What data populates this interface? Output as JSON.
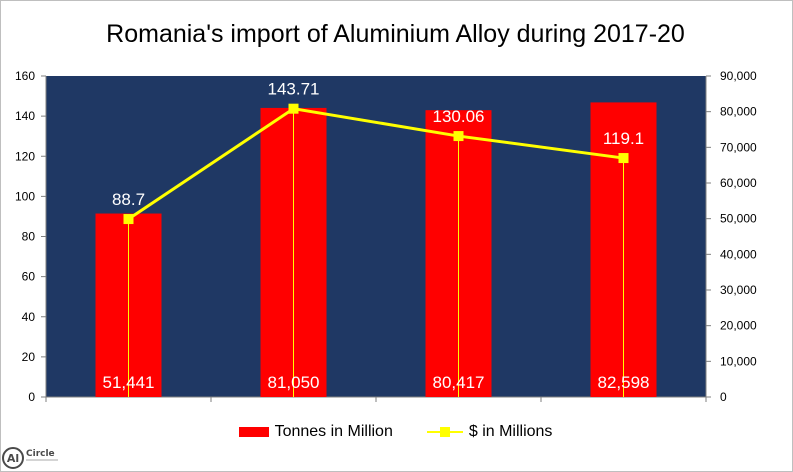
{
  "chart_data": {
    "type": "bar+line",
    "title": "Romania's import of Aluminium Alloy during 2017-20",
    "categories": [
      "",
      "",
      "",
      ""
    ],
    "series": [
      {
        "name": "Tonnes in Million",
        "type": "bar",
        "axis": "right",
        "values": [
          51441,
          81050,
          80417,
          82598
        ],
        "labels": [
          "51,441",
          "81,050",
          "80,417",
          "82,598"
        ],
        "color": "#ff0000"
      },
      {
        "name": "$ in Millions",
        "type": "line",
        "axis": "left",
        "values": [
          88.7,
          143.71,
          130.06,
          119.1
        ],
        "labels": [
          "88.7",
          "143.71",
          "130.06",
          "119.1"
        ],
        "color": "#ffff00"
      }
    ],
    "y_left": {
      "min": 0,
      "max": 160,
      "step": 20,
      "ticks": [
        "0",
        "20",
        "40",
        "60",
        "80",
        "100",
        "120",
        "140",
        "160"
      ]
    },
    "y_right": {
      "min": 0,
      "max": 90000,
      "step": 10000,
      "ticks": [
        "0",
        "10,000",
        "20,000",
        "30,000",
        "40,000",
        "50,000",
        "60,000",
        "70,000",
        "80,000",
        "90,000"
      ]
    },
    "plot_background": "#1f3864",
    "grid": false,
    "legend_position": "bottom"
  },
  "logo": {
    "text": "Circle",
    "mark": "Al"
  }
}
